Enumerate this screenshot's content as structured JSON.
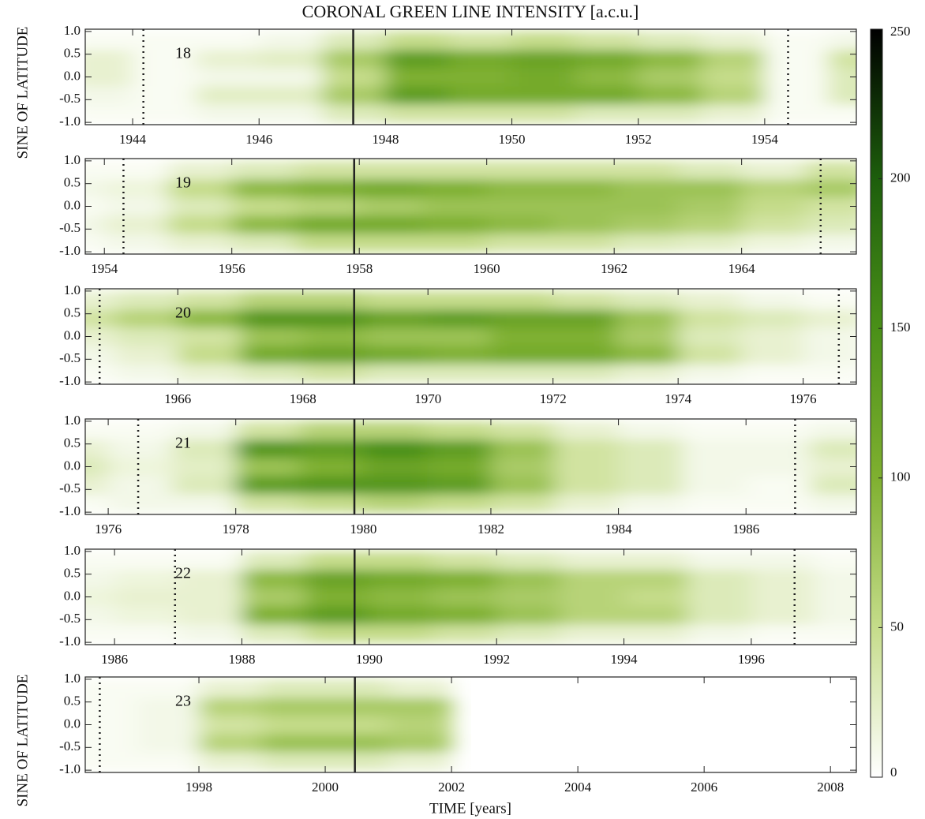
{
  "colorbar": {
    "clim": [
      0,
      250
    ],
    "ticks": [
      0,
      50,
      100,
      150,
      200,
      250
    ],
    "colormap": [
      "#ffffff",
      "#c5dc8a",
      "#7fb030",
      "#4a9018",
      "#1d5e0c",
      "#000000"
    ]
  },
  "chart_data": [
    {
      "type": "heatmap",
      "title": "CORONAL GREEN LINE INTENSITY [a.c.u.]",
      "ylabel": "SINE OF LATITUDE",
      "label": "18",
      "xlim": [
        1943.25,
        1955.45
      ],
      "xticks": [
        1944,
        1946,
        1948,
        1950,
        1952,
        1954
      ],
      "ylim": [
        -1.05,
        1.05
      ],
      "yticks": [
        {
          "value": 1,
          "label": "1.0"
        },
        0.5,
        {
          "value": 0,
          "label": "0.0"
        },
        -0.5,
        {
          "value": -1,
          "label": "-1.0"
        }
      ],
      "min_lines": [
        1944.17,
        1954.37
      ],
      "max_line": 1947.49,
      "line_color": "#222222",
      "x": [
        1943,
        1944,
        1945,
        1946,
        1947,
        1948,
        1949,
        1950,
        1951,
        1952,
        1953,
        1954,
        1955,
        1956
      ],
      "y": [
        -1,
        -0.6,
        -0.2,
        0.2,
        0.6,
        1
      ],
      "z": [
        [
          5,
          5,
          10,
          10,
          30,
          40,
          40,
          40,
          30,
          30,
          20,
          5,
          5
        ],
        [
          10,
          5,
          25,
          25,
          70,
          130,
          110,
          110,
          110,
          90,
          60,
          5,
          30
        ],
        [
          20,
          5,
          10,
          10,
          50,
          100,
          100,
          110,
          90,
          70,
          50,
          5,
          30
        ],
        [
          20,
          5,
          20,
          25,
          70,
          130,
          110,
          120,
          110,
          90,
          60,
          5,
          40
        ],
        [
          5,
          5,
          5,
          10,
          30,
          50,
          40,
          50,
          40,
          30,
          20,
          5,
          10
        ]
      ]
    },
    {
      "type": "heatmap",
      "label": "19",
      "xlim": [
        1953.7,
        1965.8
      ],
      "xticks": [
        1954,
        1956,
        1958,
        1960,
        1962,
        1964
      ],
      "ylim": [
        -1.05,
        1.05
      ],
      "yticks": [
        {
          "value": 1,
          "label": "1.0"
        },
        0.5,
        {
          "value": 0,
          "label": "0.0"
        },
        -0.5,
        {
          "value": -1,
          "label": "-1.0"
        }
      ],
      "min_lines": [
        1954.3,
        1965.24
      ],
      "max_line": 1957.92,
      "line_color": "#222222",
      "x": [
        1953,
        1954,
        1955,
        1956,
        1957,
        1958,
        1959,
        1960,
        1961,
        1962,
        1963,
        1964,
        1965,
        1966
      ],
      "y": [
        -1,
        -0.6,
        -0.2,
        0.2,
        0.6,
        1
      ],
      "z": [
        [
          5,
          10,
          20,
          30,
          50,
          50,
          50,
          40,
          40,
          30,
          25,
          15,
          10
        ],
        [
          10,
          20,
          50,
          90,
          110,
          110,
          100,
          90,
          80,
          70,
          60,
          40,
          30
        ],
        [
          5,
          10,
          30,
          50,
          60,
          70,
          80,
          80,
          80,
          80,
          70,
          50,
          40
        ],
        [
          10,
          15,
          50,
          90,
          100,
          110,
          100,
          90,
          90,
          80,
          80,
          60,
          70
        ],
        [
          5,
          5,
          20,
          30,
          40,
          40,
          40,
          40,
          40,
          40,
          30,
          20,
          40
        ]
      ]
    },
    {
      "type": "heatmap",
      "label": "20",
      "xlim": [
        1964.52,
        1976.85
      ],
      "xticks": [
        1966,
        1968,
        1970,
        1972,
        1974,
        1976
      ],
      "ylim": [
        -1.05,
        1.05
      ],
      "yticks": [
        {
          "value": 1,
          "label": "1.0"
        },
        0.5,
        {
          "value": 0,
          "label": "0.0"
        },
        -0.5,
        {
          "value": -1,
          "label": "-1.0"
        }
      ],
      "min_lines": [
        1964.75,
        1976.57
      ],
      "max_line": 1968.82,
      "line_color": "#222222",
      "x": [
        1964,
        1965,
        1966,
        1967,
        1968,
        1969,
        1970,
        1971,
        1972,
        1973,
        1974,
        1975,
        1976,
        1977
      ],
      "y": [
        -1,
        -0.6,
        -0.2,
        0.2,
        0.6,
        1
      ],
      "z": [
        [
          5,
          10,
          20,
          30,
          40,
          30,
          30,
          30,
          30,
          20,
          10,
          5,
          5
        ],
        [
          10,
          20,
          50,
          110,
          120,
          110,
          100,
          110,
          110,
          90,
          40,
          20,
          10
        ],
        [
          20,
          30,
          40,
          80,
          90,
          80,
          80,
          100,
          100,
          70,
          30,
          20,
          10
        ],
        [
          40,
          60,
          90,
          140,
          140,
          120,
          130,
          120,
          120,
          80,
          40,
          30,
          20
        ],
        [
          20,
          30,
          40,
          60,
          60,
          50,
          50,
          50,
          40,
          30,
          20,
          10,
          5
        ]
      ]
    },
    {
      "type": "heatmap",
      "label": "21",
      "xlim": [
        1975.64,
        1987.73
      ],
      "xticks": [
        1976,
        1978,
        1980,
        1982,
        1984,
        1986
      ],
      "ylim": [
        -1.05,
        1.05
      ],
      "yticks": [
        {
          "value": 1,
          "label": "1.0"
        },
        0.5,
        {
          "value": 0,
          "label": "0.0"
        },
        -0.5,
        {
          "value": -1,
          "label": "-1.0"
        }
      ],
      "min_lines": [
        1976.47,
        1986.77
      ],
      "max_line": 1979.86,
      "line_color": "#222222",
      "x": [
        1975,
        1976,
        1977,
        1978,
        1979,
        1980,
        1981,
        1982,
        1983,
        1984,
        1985,
        1986,
        1987,
        1988
      ],
      "y": [
        -1,
        -0.6,
        -0.2,
        0.2,
        0.6,
        1
      ],
      "z": [
        [
          5,
          10,
          10,
          40,
          50,
          60,
          50,
          40,
          20,
          10,
          5,
          5,
          10
        ],
        [
          20,
          10,
          30,
          130,
          140,
          140,
          130,
          80,
          40,
          30,
          10,
          5,
          30
        ],
        [
          30,
          15,
          25,
          80,
          100,
          120,
          110,
          70,
          40,
          30,
          10,
          10,
          20
        ],
        [
          20,
          10,
          30,
          140,
          130,
          150,
          130,
          80,
          40,
          30,
          10,
          10,
          30
        ],
        [
          5,
          5,
          10,
          40,
          60,
          60,
          50,
          40,
          20,
          10,
          5,
          5,
          10
        ]
      ]
    },
    {
      "type": "heatmap",
      "label": "22",
      "xlim": [
        1985.54,
        1997.65
      ],
      "xticks": [
        1986,
        1988,
        1990,
        1992,
        1994,
        1996
      ],
      "ylim": [
        -1.05,
        1.05
      ],
      "yticks": [
        {
          "value": 1,
          "label": "1.0"
        },
        0.5,
        {
          "value": 0,
          "label": "0.0"
        },
        -0.5,
        {
          "value": -1,
          "label": "-1.0"
        }
      ],
      "min_lines": [
        1986.95,
        1996.68
      ],
      "max_line": 1989.77,
      "line_color": "#222222",
      "x": [
        1985,
        1986,
        1987,
        1988,
        1989,
        1990,
        1991,
        1992,
        1993,
        1994,
        1995,
        1996,
        1997,
        1998
      ],
      "y": [
        -1,
        -0.6,
        -0.2,
        0.2,
        0.6,
        1
      ],
      "z": [
        [
          5,
          5,
          10,
          30,
          50,
          50,
          40,
          30,
          20,
          20,
          10,
          5,
          5
        ],
        [
          10,
          15,
          20,
          100,
          130,
          110,
          100,
          80,
          60,
          60,
          30,
          20,
          10
        ],
        [
          15,
          20,
          20,
          70,
          100,
          90,
          80,
          70,
          60,
          50,
          30,
          20,
          10
        ],
        [
          10,
          15,
          20,
          90,
          120,
          110,
          100,
          80,
          60,
          60,
          30,
          20,
          10
        ],
        [
          5,
          5,
          5,
          30,
          50,
          50,
          40,
          30,
          20,
          20,
          10,
          10,
          5
        ]
      ]
    },
    {
      "type": "heatmap",
      "label": "23",
      "ylabel": "SINE OF LATITUDE",
      "xlabel": "TIME [years]",
      "xlim": [
        1996.2,
        2008.41
      ],
      "xticks": [
        1998,
        2000,
        2002,
        2004,
        2006,
        2008
      ],
      "ylim": [
        -1.05,
        1.05
      ],
      "yticks": [
        {
          "value": 1,
          "label": "1.0"
        },
        0.5,
        {
          "value": 0,
          "label": "0.0"
        },
        -0.5,
        {
          "value": -1,
          "label": "-1.0"
        }
      ],
      "min_lines": [
        1996.43
      ],
      "max_line": 2000.47,
      "line_color": "#222222",
      "x": [
        1996,
        1997,
        1998,
        1999,
        2000,
        2001,
        2002
      ],
      "y": [
        -1,
        -0.6,
        -0.2,
        0.2,
        0.6,
        1
      ],
      "z": [
        [
          5,
          5,
          20,
          30,
          30,
          20
        ],
        [
          5,
          10,
          60,
          80,
          80,
          70
        ],
        [
          5,
          10,
          40,
          50,
          50,
          60
        ],
        [
          5,
          10,
          60,
          70,
          70,
          70
        ],
        [
          5,
          5,
          20,
          30,
          30,
          20
        ]
      ]
    }
  ]
}
